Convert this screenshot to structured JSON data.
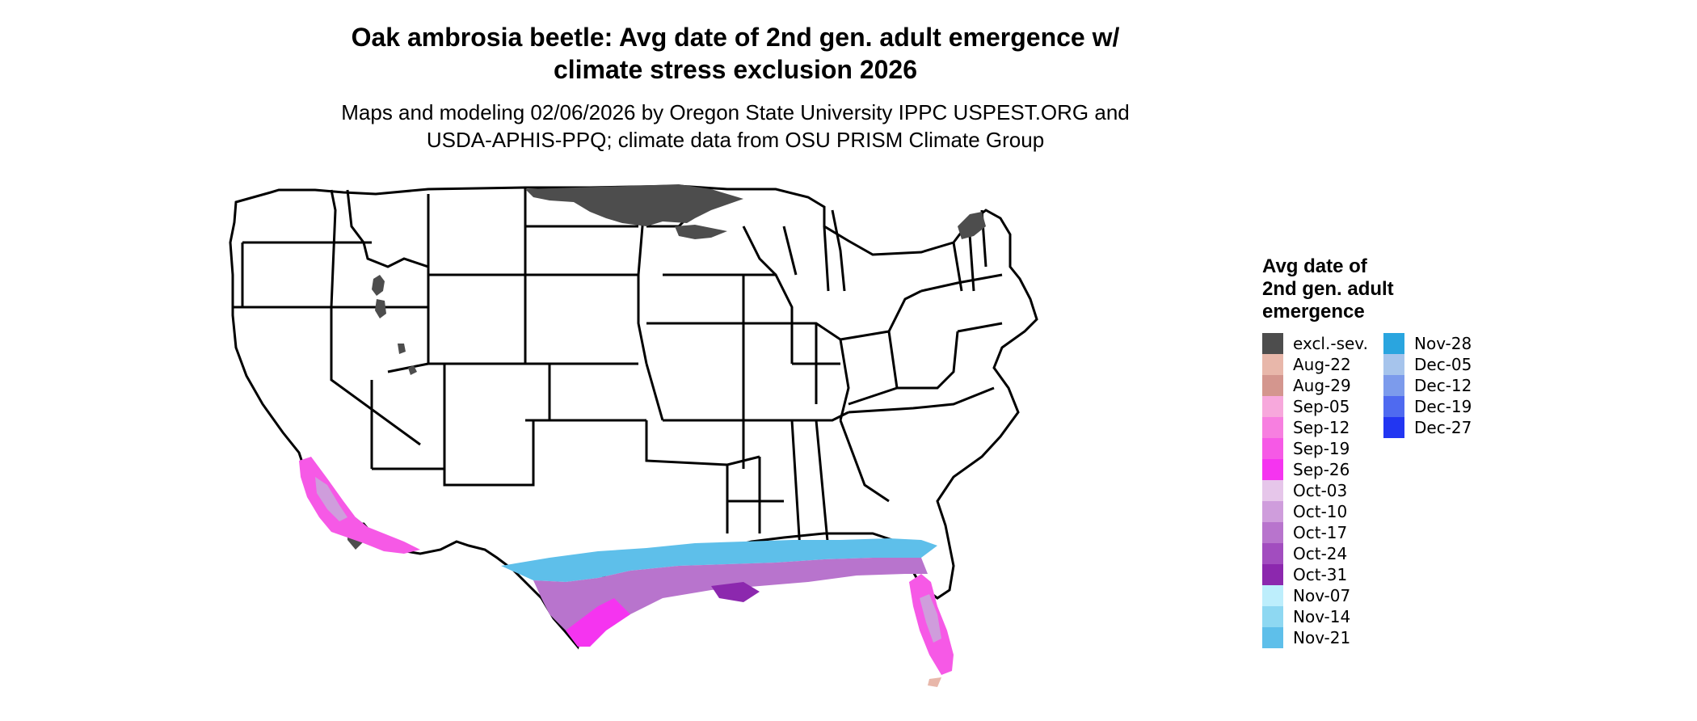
{
  "title_line1": "Oak ambrosia beetle: Avg date of 2nd gen. adult emergence w/",
  "title_line2": "climate stress exclusion 2026",
  "subtitle_line1": "Maps and modeling 02/06/2026 by Oregon State University IPPC USPEST.ORG and",
  "subtitle_line2": "USDA-APHIS-PPQ; climate data from OSU PRISM Climate Group",
  "legend": {
    "title_line1": "Avg date of",
    "title_line2": "2nd gen. adult",
    "title_line3": "emergence",
    "items": [
      {
        "label": "excl.-sev.",
        "color": "#4d4d4d"
      },
      {
        "label": "Aug-22",
        "color": "#e8b7aa"
      },
      {
        "label": "Aug-29",
        "color": "#d4968e"
      },
      {
        "label": "Sep-05",
        "color": "#f7a8dc"
      },
      {
        "label": "Sep-12",
        "color": "#f77fe0"
      },
      {
        "label": "Sep-19",
        "color": "#f659e6"
      },
      {
        "label": "Sep-26",
        "color": "#f534f0"
      },
      {
        "label": "Oct-03",
        "color": "#e6c6ea"
      },
      {
        "label": "Oct-10",
        "color": "#cf9ddc"
      },
      {
        "label": "Oct-17",
        "color": "#b874cd"
      },
      {
        "label": "Oct-24",
        "color": "#a24dbf"
      },
      {
        "label": "Oct-31",
        "color": "#8c28ae"
      },
      {
        "label": "Nov-07",
        "color": "#bdeefc"
      },
      {
        "label": "Nov-14",
        "color": "#8ed8f2"
      },
      {
        "label": "Nov-21",
        "color": "#5ebfea"
      },
      {
        "label": "Nov-28",
        "color": "#2aa5df"
      },
      {
        "label": "Dec-05",
        "color": "#a6c4ec"
      },
      {
        "label": "Dec-12",
        "color": "#7c9bec"
      },
      {
        "label": "Dec-19",
        "color": "#4f6af0"
      },
      {
        "label": "Dec-27",
        "color": "#2236f2"
      }
    ]
  }
}
